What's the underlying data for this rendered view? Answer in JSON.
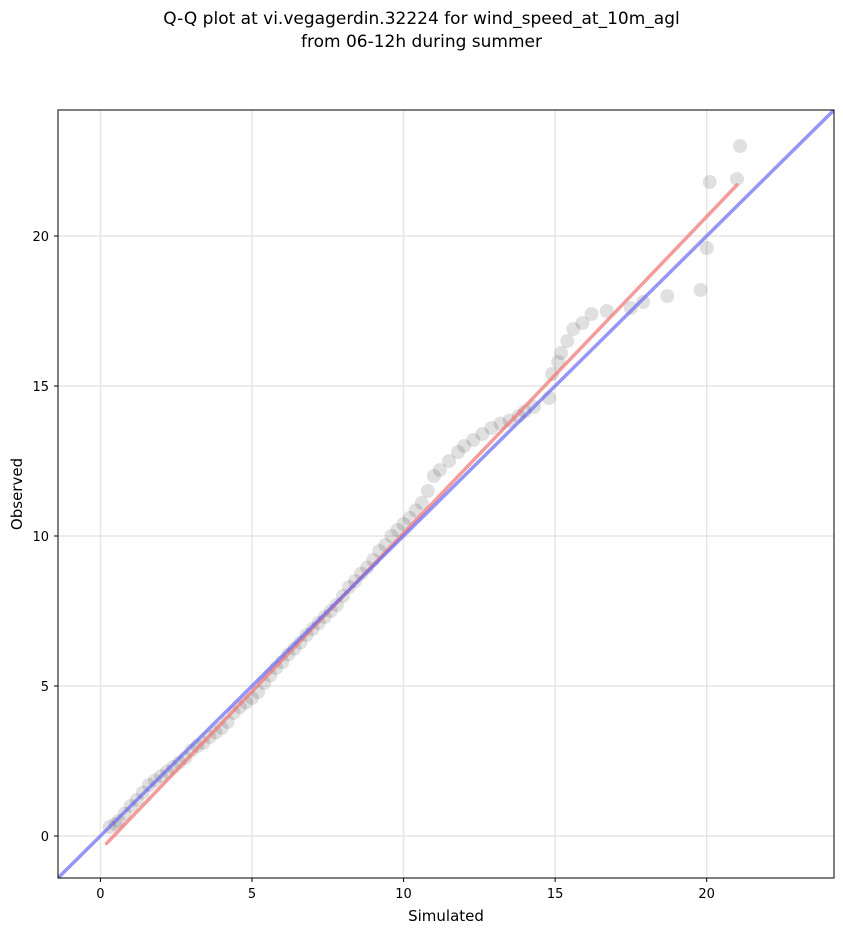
{
  "chart_data": {
    "type": "scatter",
    "title_line1": "Q-Q plot at vi.vegagerdin.32224 for wind_speed_at_10m_agl",
    "title_line2": "from 06-12h during summer",
    "xlabel": "Simulated",
    "ylabel": "Observed",
    "xlim": [
      -1.4,
      24.2
    ],
    "ylim": [
      -1.4,
      24.2
    ],
    "xticks": [
      0,
      5,
      10,
      15,
      20
    ],
    "yticks": [
      0,
      5,
      10,
      15,
      20
    ],
    "grid": true,
    "colors": {
      "points": "#000000",
      "identity_line": "#6a6af0",
      "fit_line": "#f07a7a",
      "grid": "#e6e6e6"
    },
    "identity_line": {
      "x": [
        -1.4,
        24.2
      ],
      "y": [
        -1.4,
        24.2
      ]
    },
    "fit_line": {
      "x": [
        0.2,
        21.0
      ],
      "y": [
        -0.25,
        21.7
      ]
    },
    "points": [
      [
        0.3,
        0.3
      ],
      [
        0.5,
        0.4
      ],
      [
        0.6,
        0.5
      ],
      [
        0.8,
        0.75
      ],
      [
        1.0,
        1.0
      ],
      [
        1.2,
        1.2
      ],
      [
        1.4,
        1.45
      ],
      [
        1.6,
        1.7
      ],
      [
        1.8,
        1.85
      ],
      [
        2.0,
        2.0
      ],
      [
        2.2,
        2.15
      ],
      [
        2.4,
        2.3
      ],
      [
        2.6,
        2.45
      ],
      [
        2.8,
        2.6
      ],
      [
        3.0,
        2.85
      ],
      [
        3.2,
        3.0
      ],
      [
        3.4,
        3.1
      ],
      [
        3.6,
        3.3
      ],
      [
        3.8,
        3.45
      ],
      [
        4.0,
        3.6
      ],
      [
        4.2,
        3.8
      ],
      [
        4.4,
        4.1
      ],
      [
        4.6,
        4.3
      ],
      [
        4.8,
        4.45
      ],
      [
        5.0,
        4.6
      ],
      [
        5.2,
        4.8
      ],
      [
        5.4,
        5.1
      ],
      [
        5.6,
        5.35
      ],
      [
        5.8,
        5.6
      ],
      [
        6.0,
        5.8
      ],
      [
        6.2,
        6.05
      ],
      [
        6.4,
        6.25
      ],
      [
        6.6,
        6.45
      ],
      [
        6.8,
        6.7
      ],
      [
        7.0,
        6.9
      ],
      [
        7.2,
        7.1
      ],
      [
        7.4,
        7.3
      ],
      [
        7.6,
        7.5
      ],
      [
        7.8,
        7.7
      ],
      [
        8.0,
        8.0
      ],
      [
        8.2,
        8.3
      ],
      [
        8.4,
        8.5
      ],
      [
        8.6,
        8.75
      ],
      [
        8.8,
        8.95
      ],
      [
        9.0,
        9.2
      ],
      [
        9.2,
        9.5
      ],
      [
        9.4,
        9.7
      ],
      [
        9.6,
        10.0
      ],
      [
        9.8,
        10.2
      ],
      [
        10.0,
        10.4
      ],
      [
        10.2,
        10.6
      ],
      [
        10.4,
        10.85
      ],
      [
        10.6,
        11.1
      ],
      [
        10.8,
        11.5
      ],
      [
        11.0,
        12.0
      ],
      [
        11.2,
        12.2
      ],
      [
        11.5,
        12.5
      ],
      [
        11.8,
        12.8
      ],
      [
        12.0,
        13.0
      ],
      [
        12.3,
        13.2
      ],
      [
        12.6,
        13.4
      ],
      [
        12.9,
        13.6
      ],
      [
        13.2,
        13.75
      ],
      [
        13.5,
        13.85
      ],
      [
        13.8,
        14.0
      ],
      [
        14.0,
        14.15
      ],
      [
        14.3,
        14.3
      ],
      [
        14.8,
        14.6
      ],
      [
        14.9,
        15.4
      ],
      [
        15.1,
        15.8
      ],
      [
        15.2,
        16.1
      ],
      [
        15.4,
        16.5
      ],
      [
        15.6,
        16.9
      ],
      [
        15.9,
        17.1
      ],
      [
        16.2,
        17.4
      ],
      [
        16.7,
        17.5
      ],
      [
        17.5,
        17.6
      ],
      [
        17.9,
        17.8
      ],
      [
        18.7,
        18.0
      ],
      [
        19.8,
        18.2
      ],
      [
        20.0,
        19.6
      ],
      [
        20.1,
        21.8
      ],
      [
        21.0,
        21.9
      ],
      [
        21.1,
        23.0
      ]
    ]
  }
}
